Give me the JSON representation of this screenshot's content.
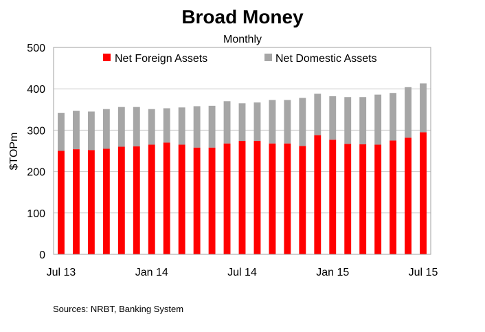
{
  "chart_data": {
    "type": "bar",
    "stacked": true,
    "title": "Broad Money",
    "subtitle": "Monthly",
    "ylabel": "$TOPm",
    "xlabel": "",
    "ylim": [
      0,
      500
    ],
    "yticks": [
      0,
      100,
      200,
      300,
      400,
      500
    ],
    "grid": true,
    "legend": "top",
    "categories": [
      "Jul 13",
      "Aug 13",
      "Sep 13",
      "Oct 13",
      "Nov 13",
      "Dec 13",
      "Jan 14",
      "Feb 14",
      "Mar 14",
      "Apr 14",
      "May 14",
      "Jun 14",
      "Jul 14",
      "Aug 14",
      "Sep 14",
      "Oct 14",
      "Nov 14",
      "Dec 14",
      "Jan 15",
      "Feb 15",
      "Mar 15",
      "Apr 15",
      "May 15",
      "Jun 15",
      "Jul 15"
    ],
    "xtick_labels": [
      "Jul 13",
      "Jan 14",
      "Jul 14",
      "Jan 15",
      "Jul 15"
    ],
    "series": [
      {
        "name": "Net Foreign Assets",
        "color": "#ff0000",
        "values": [
          250,
          254,
          252,
          255,
          260,
          261,
          265,
          270,
          265,
          258,
          258,
          268,
          274,
          274,
          268,
          268,
          262,
          288,
          277,
          267,
          266,
          265,
          275,
          282,
          295
        ]
      },
      {
        "name": "Net Domestic Assets",
        "color": "#a6a6a6",
        "values": [
          92,
          93,
          93,
          96,
          96,
          95,
          86,
          83,
          90,
          100,
          101,
          102,
          91,
          93,
          105,
          105,
          116,
          100,
          105,
          113,
          114,
          121,
          115,
          122,
          118
        ]
      }
    ]
  },
  "source_text": "Sources: NRBT, Banking System"
}
